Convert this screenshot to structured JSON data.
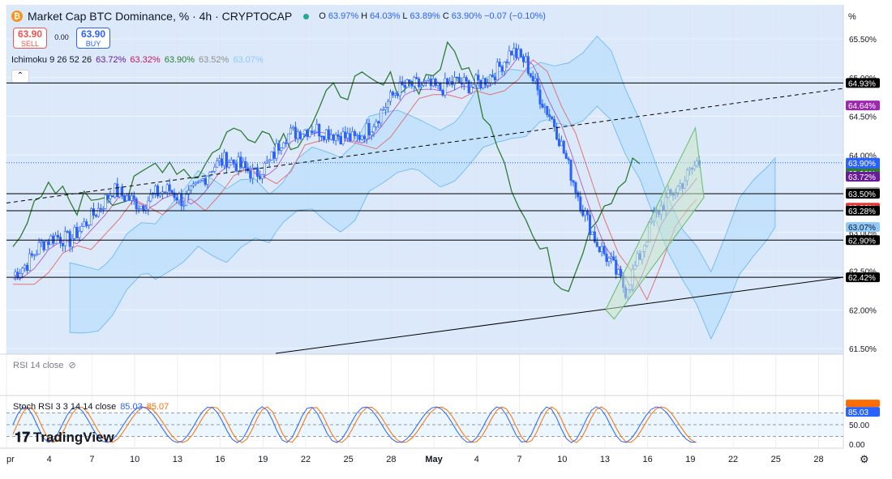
{
  "header": {
    "title": "Market Cap BTC Dominance, % · 4h · CRYPTOCAP",
    "ohlc": {
      "o": "63.97%",
      "h": "64.03%",
      "l": "63.89%",
      "c": "63.90%",
      "change": "−0.07 (−0.10%)"
    },
    "sell_price": "63.90",
    "sell_label": "SELL",
    "buy_price": "63.90",
    "buy_label": "BUY",
    "spread": "0.00",
    "collapse_icon": "chevron-up-icon"
  },
  "indicators": {
    "ichimoku": {
      "name": "Ichimoku 9 26 52 26",
      "values": [
        "63.72%",
        "63.32%",
        "63.90%",
        "63.52%",
        "63.07%"
      ],
      "colors": [
        "#6a1b9a",
        "#c2185b",
        "#2e7d32",
        "#8d8d8d",
        "#90caf9"
      ]
    },
    "rsi": {
      "name": "RSI 14 close"
    },
    "stoch": {
      "name": "Stoch RSI 3 3 14 14 close",
      "k": "85.03",
      "d": "85.07",
      "k_color": "#2962ff",
      "d_color": "#ff6d00"
    }
  },
  "branding": {
    "logo_text": "TradingView"
  },
  "axis": {
    "unit": "%",
    "ticks": [
      "65.50%",
      "65.00%",
      "64.50%",
      "64.00%",
      "63.50%",
      "63.00%",
      "62.50%",
      "62.00%",
      "61.50%"
    ],
    "stoch_ticks": [
      "50.00",
      "0.00"
    ],
    "x_ticks": [
      "pr",
      "4",
      "7",
      "10",
      "13",
      "16",
      "19",
      "22",
      "25",
      "28",
      "May",
      "4",
      "7",
      "10",
      "13",
      "16",
      "19",
      "22",
      "25",
      "28"
    ]
  },
  "chart_data": {
    "type": "candlestick",
    "title": "Market Cap BTC Dominance, % · 4h · CRYPTOCAP",
    "ylim": [
      61.5,
      65.7
    ],
    "x_range": [
      "Apr 1",
      "May 30"
    ],
    "close_series_points": [
      [
        "Apr 1",
        62.45
      ],
      [
        "Apr 2",
        62.6
      ],
      [
        "Apr 3",
        62.85
      ],
      [
        "Apr 4",
        62.95
      ],
      [
        "Apr 5",
        62.9
      ],
      [
        "Apr 7",
        63.3
      ],
      [
        "Apr 8",
        63.55
      ],
      [
        "Apr 9",
        63.45
      ],
      [
        "Apr 10",
        63.35
      ],
      [
        "Apr 11",
        63.5
      ],
      [
        "Apr 12",
        63.55
      ],
      [
        "Apr 13",
        63.4
      ],
      [
        "Apr 14",
        63.6
      ],
      [
        "Apr 15",
        63.85
      ],
      [
        "Apr 16",
        63.95
      ],
      [
        "Apr 17",
        63.85
      ],
      [
        "Apr 18",
        63.75
      ],
      [
        "Apr 19",
        63.9
      ],
      [
        "Apr 20",
        64.25
      ],
      [
        "Apr 21",
        64.3
      ],
      [
        "Apr 22",
        64.35
      ],
      [
        "Apr 23",
        64.3
      ],
      [
        "Apr 24",
        64.25
      ],
      [
        "Apr 25",
        64.2
      ],
      [
        "Apr 26",
        64.35
      ],
      [
        "Apr 27",
        64.6
      ],
      [
        "Apr 28",
        64.85
      ],
      [
        "Apr 29",
        64.9
      ],
      [
        "Apr 30",
        64.9
      ],
      [
        "May 1",
        64.85
      ],
      [
        "May 2",
        64.95
      ],
      [
        "May 3",
        64.9
      ],
      [
        "May 4",
        64.95
      ],
      [
        "May 5",
        65.1
      ],
      [
        "May 6",
        65.35
      ],
      [
        "May 7",
        65.2
      ],
      [
        "May 8",
        64.75
      ],
      [
        "May 9",
        64.4
      ],
      [
        "May 10",
        63.85
      ],
      [
        "May 11",
        63.3
      ],
      [
        "May 12",
        62.85
      ],
      [
        "May 13",
        62.6
      ],
      [
        "May 14",
        62.25
      ],
      [
        "May 15",
        62.7
      ],
      [
        "May 16",
        63.2
      ],
      [
        "May 17",
        63.45
      ],
      [
        "May 18",
        63.65
      ],
      [
        "May 19",
        63.9
      ]
    ],
    "horizontal_levels": [
      64.93,
      63.5,
      63.28,
      62.9,
      62.42
    ],
    "price_labels": [
      {
        "value": 64.93,
        "text": "64.93%",
        "color": "#000000"
      },
      {
        "value": 64.64,
        "text": "64.64%",
        "color": "#9c27b0"
      },
      {
        "value": 63.9,
        "text": "63.90%",
        "sub": "54:29",
        "color": "#2962ff"
      },
      {
        "value": 63.9,
        "text": "63.90%",
        "color": "#2e7d32",
        "offset": 1
      },
      {
        "value": 63.72,
        "text": "63.72%",
        "color": "#6a1b9a"
      },
      {
        "value": 63.52,
        "text": "63.52%",
        "color": "#8d8d8d"
      },
      {
        "value": 63.5,
        "text": "63.50%",
        "color": "#000000"
      },
      {
        "value": 63.32,
        "text": "63.32%",
        "color": "#e53935"
      },
      {
        "value": 63.28,
        "text": "63.28%",
        "color": "#000000"
      },
      {
        "value": 63.07,
        "text": "63.07%",
        "color": "#90caf9",
        "dark": true
      },
      {
        "value": 62.9,
        "text": "62.90%",
        "color": "#000000"
      },
      {
        "value": 62.42,
        "text": "62.42%",
        "color": "#000000"
      }
    ],
    "stoch_last": {
      "k": 85.03,
      "d": 85.07
    },
    "colors": {
      "up": "#2962ff",
      "down": "#2962ff",
      "chikou": "#2e7d32",
      "cloud": "#bbdefb",
      "background": "#dbe9fb"
    }
  }
}
